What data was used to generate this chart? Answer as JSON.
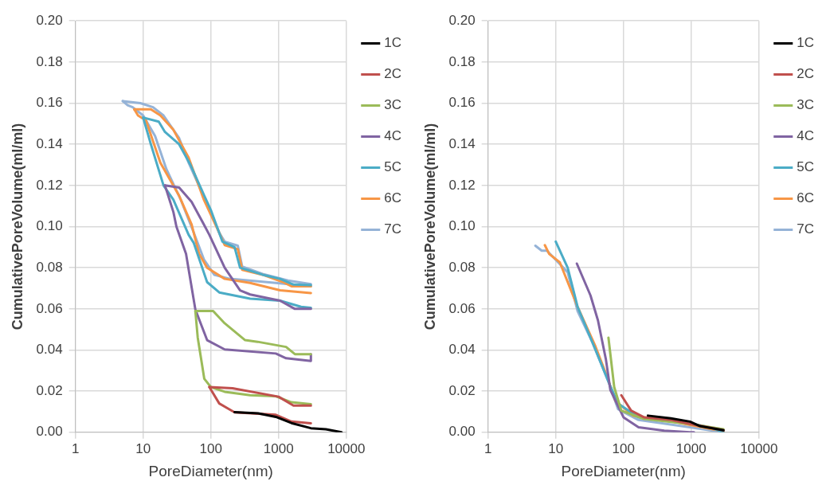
{
  "chart_data": [
    {
      "type": "line",
      "xlabel": "PoreDiameter(nm)",
      "ylabel": "CumulativePoreVolume(ml/ml)",
      "log": "x",
      "grid": true,
      "legend": "top right",
      "marker": "none",
      "line_style": "solid",
      "xlim": [
        1,
        10000
      ],
      "xticks": [
        1,
        10,
        100,
        1000,
        10000
      ],
      "ylim": [
        0,
        0.2
      ],
      "yticks": [
        {
          "value": 0,
          "label": "0.00"
        },
        {
          "value": 0.02,
          "label": "0.02"
        },
        {
          "value": 0.04,
          "label": "0.04"
        },
        {
          "value": 0.06,
          "label": "0.06"
        },
        {
          "value": 0.08,
          "label": "0.08"
        },
        {
          "value": 0.1,
          "label": "0.10"
        },
        {
          "value": 0.12,
          "label": "0.12"
        },
        {
          "value": 0.14,
          "label": "0.14"
        },
        {
          "value": 0.16,
          "label": "0.16"
        },
        {
          "value": 0.18,
          "label": "0.18"
        },
        {
          "value": 0.2,
          "label": "0.20"
        }
      ],
      "series": [
        {
          "name": "1C",
          "color": "#000000",
          "x": [
            224,
            500,
            910,
            1550,
            3000,
            5000,
            8500
          ],
          "values": [
            0.0098,
            0.0092,
            0.0075,
            0.0045,
            0.002,
            0.0015,
            0
          ]
        },
        {
          "name": "2C",
          "color": "#c0504d",
          "x": [
            95,
            209,
            1000,
            1660,
            3000
          ],
          "values": [
            0.022,
            0.0214,
            0.0173,
            0.013,
            0.013
          ]
        },
        {
          "color": "#c0504d",
          "x": [
            95,
            133,
            224,
            910,
            1550,
            3000
          ],
          "values": [
            0.022,
            0.014,
            0.0097,
            0.0085,
            0.0052,
            0.0044
          ]
        },
        {
          "name": "3C",
          "color": "#9bbb59",
          "x": [
            59,
            108,
            160,
            320,
            490,
            1290,
            1740,
            3000
          ],
          "values": [
            0.059,
            0.059,
            0.053,
            0.0448,
            0.044,
            0.0415,
            0.038,
            0.038
          ]
        },
        {
          "color": "#9bbb59",
          "x": [
            59,
            64,
            80,
            100,
            160,
            380,
            910,
            1550,
            3000
          ],
          "values": [
            0.059,
            0.046,
            0.026,
            0.022,
            0.0197,
            0.018,
            0.0175,
            0.0146,
            0.0137
          ]
        },
        {
          "name": "4C",
          "color": "#8064a2",
          "x": [
            21,
            34,
            52,
            79,
            95,
            160,
            270,
            380,
            1050,
            1740,
            3000
          ],
          "values": [
            0.12,
            0.119,
            0.112,
            0.101,
            0.096,
            0.08,
            0.069,
            0.067,
            0.064,
            0.06,
            0.06
          ]
        },
        {
          "color": "#8064a2",
          "x": [
            21,
            28,
            31,
            43,
            59,
            88,
            160,
            910,
            1290,
            3000,
            3000
          ],
          "values": [
            0.12,
            0.107,
            0.1,
            0.0867,
            0.0597,
            0.0448,
            0.0403,
            0.0383,
            0.036,
            0.0347,
            0.038
          ]
        },
        {
          "name": "5C",
          "color": "#4bacc6",
          "x": [
            10,
            17,
            21,
            34,
            50,
            80,
            100,
            148,
            224,
            270,
            580,
            1050,
            1660,
            3000
          ],
          "values": [
            0.153,
            0.151,
            0.146,
            0.14,
            0.13,
            0.115,
            0.108,
            0.0927,
            0.09,
            0.08,
            0.0766,
            0.0746,
            0.0718,
            0.0715
          ]
        },
        {
          "color": "#4bacc6",
          "x": [
            10,
            13,
            20,
            28,
            47,
            56,
            88,
            133,
            380,
            1050,
            2150,
            3000
          ],
          "values": [
            0.153,
            0.14,
            0.12,
            0.113,
            0.096,
            0.092,
            0.073,
            0.068,
            0.065,
            0.064,
            0.061,
            0.0605
          ]
        },
        {
          "name": "6C",
          "color": "#f79646",
          "x": [
            7.4,
            13,
            18,
            28,
            47,
            79,
            133,
            160,
            250,
            290,
            580,
            1170,
            1550,
            3000
          ],
          "values": [
            0.157,
            0.157,
            0.154,
            0.147,
            0.1335,
            0.113,
            0.097,
            0.091,
            0.089,
            0.079,
            0.0766,
            0.073,
            0.071,
            0.071
          ]
        },
        {
          "color": "#f79646",
          "x": [
            7.4,
            8.4,
            11,
            18,
            34,
            52,
            67,
            88,
            160,
            380,
            1050,
            3000
          ],
          "values": [
            0.157,
            0.154,
            0.1516,
            0.131,
            0.115,
            0.101,
            0.0867,
            0.08,
            0.0746,
            0.0726,
            0.069,
            0.0677
          ]
        },
        {
          "name": "7C",
          "color": "#95b3d7",
          "x": [
            5,
            9.1,
            14,
            20,
            34,
            47,
            88,
            133,
            160,
            250,
            290,
            580,
            1380,
            3000
          ],
          "values": [
            0.161,
            0.16,
            0.158,
            0.154,
            0.143,
            0.131,
            0.111,
            0.097,
            0.0927,
            0.0907,
            0.0806,
            0.077,
            0.0738,
            0.072
          ]
        },
        {
          "color": "#95b3d7",
          "x": [
            5,
            5.9,
            7,
            10,
            15,
            22,
            36,
            56,
            79,
            112,
            190,
            910,
            3000
          ],
          "values": [
            0.161,
            0.159,
            0.158,
            0.154,
            0.144,
            0.128,
            0.113,
            0.097,
            0.084,
            0.0766,
            0.0746,
            0.0726,
            0.071
          ]
        }
      ]
    },
    {
      "type": "line",
      "xlabel": "PoreDiameter(nm)",
      "ylabel": "CumulativePoreVolume(ml/ml)",
      "log": "x",
      "grid": true,
      "legend": "top right",
      "marker": "none",
      "line_style": "solid",
      "xlim": [
        1,
        10000
      ],
      "xticks": [
        1,
        10,
        100,
        1000,
        10000
      ],
      "ylim": [
        0,
        0.2
      ],
      "yticks": [
        {
          "value": 0,
          "label": "0.00"
        },
        {
          "value": 0.02,
          "label": "0.02"
        },
        {
          "value": 0.04,
          "label": "0.04"
        },
        {
          "value": 0.06,
          "label": "0.06"
        },
        {
          "value": 0.08,
          "label": "0.08"
        },
        {
          "value": 0.1,
          "label": "0.10"
        },
        {
          "value": 0.12,
          "label": "0.12"
        },
        {
          "value": 0.14,
          "label": "0.14"
        },
        {
          "value": 0.16,
          "label": "0.16"
        },
        {
          "value": 0.18,
          "label": "0.18"
        },
        {
          "value": 0.2,
          "label": "0.20"
        }
      ],
      "series": [
        {
          "name": "1C",
          "color": "#000000",
          "x": [
            230,
            500,
            960,
            1350,
            3000
          ],
          "values": [
            0.0081,
            0.0068,
            0.0052,
            0.003,
            0.001
          ]
        },
        {
          "name": "2C",
          "color": "#c0504d",
          "x": [
            93,
            130,
            200,
            500,
            1000,
            3000
          ],
          "values": [
            0.018,
            0.0105,
            0.0073,
            0.006,
            0.004,
            0.001
          ]
        },
        {
          "name": "3C",
          "color": "#9bbb59",
          "x": [
            60,
            73,
            93,
            200,
            1000,
            3000
          ],
          "values": [
            0.046,
            0.022,
            0.0105,
            0.0065,
            0.004,
            0.0015
          ]
        },
        {
          "name": "4C",
          "color": "#8064a2",
          "x": [
            20.5,
            32.6,
            42,
            55,
            64,
            100,
            167,
            400,
            960,
            1100
          ],
          "values": [
            0.082,
            0.0665,
            0.0544,
            0.0355,
            0.0206,
            0.0073,
            0.0024,
            0.0008,
            0,
            0
          ]
        },
        {
          "name": "5C",
          "color": "#4bacc6",
          "x": [
            10,
            15,
            21,
            38,
            60,
            83,
            167,
            960,
            1900,
            3000
          ],
          "values": [
            0.0927,
            0.08,
            0.061,
            0.0407,
            0.0246,
            0.014,
            0.0073,
            0.0044,
            0.0024,
            0
          ]
        },
        {
          "name": "6C",
          "color": "#f79646",
          "x": [
            6.9,
            8,
            11.5,
            21,
            38,
            55,
            76,
            140,
            400,
            960,
            3000
          ],
          "values": [
            0.091,
            0.0867,
            0.0826,
            0.061,
            0.0423,
            0.0286,
            0.0153,
            0.008,
            0.006,
            0.0036,
            0.0005
          ]
        },
        {
          "name": "7C",
          "color": "#95b3d7",
          "x": [
            5,
            6.2,
            7.4,
            10,
            15,
            21,
            35,
            60,
            83,
            167,
            960,
            3000
          ],
          "values": [
            0.0907,
            0.0883,
            0.0883,
            0.0839,
            0.0778,
            0.0589,
            0.0435,
            0.0246,
            0.0113,
            0.006,
            0.0024,
            0
          ]
        }
      ]
    }
  ]
}
